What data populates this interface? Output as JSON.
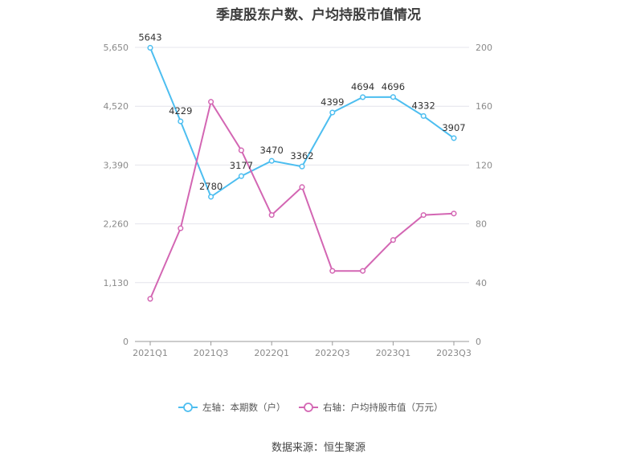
{
  "title": "季度股东户数、户均持股市值情况",
  "source": "数据来源：恒生聚源",
  "chart_data": {
    "type": "line",
    "title": "季度股东户数、户均持股市值情况",
    "categories": [
      "2021Q1",
      "2021Q2",
      "2021Q3",
      "2021Q4",
      "2022Q1",
      "2022Q2",
      "2022Q3",
      "2022Q4",
      "2023Q1",
      "2023Q2",
      "2023Q3"
    ],
    "x_tick_labels": [
      "2021Q1",
      "2021Q3",
      "2022Q1",
      "2022Q3",
      "2023Q1",
      "2023Q3"
    ],
    "y_left": {
      "ticks": [
        "0",
        "1,130",
        "2,260",
        "3,390",
        "4,520",
        "5,650"
      ],
      "range": [
        0,
        5650
      ]
    },
    "y_right": {
      "ticks": [
        "0",
        "40",
        "80",
        "120",
        "160",
        "200"
      ],
      "range": [
        0,
        200
      ]
    },
    "grid": "horizontal",
    "legend_position": "bottom-center",
    "series": [
      {
        "name": "左轴：本期数（户）",
        "axis": "left",
        "color": "#4dbef0",
        "values": [
          5643,
          4229,
          2780,
          3177,
          3470,
          3362,
          4399,
          4694,
          4696,
          4332,
          3907
        ],
        "labels": [
          "5643",
          "4229",
          "2780",
          "3177",
          "3470",
          "3362",
          "4399",
          "4694",
          "4696",
          "4332",
          "3907"
        ]
      },
      {
        "name": "右轴：户均持股市值（万元）",
        "axis": "right",
        "color": "#d366b3",
        "values": [
          29,
          77,
          163,
          130,
          86,
          105,
          48,
          48,
          69,
          86,
          87
        ]
      }
    ]
  }
}
